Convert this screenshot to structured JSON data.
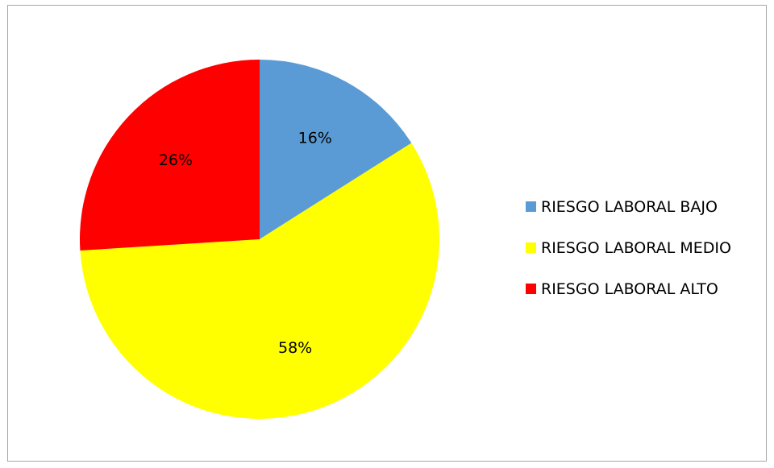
{
  "chart_data": {
    "type": "pie",
    "title": "",
    "series": [
      {
        "name": "RIESGO LABORAL BAJO",
        "value": 16,
        "label": "16%",
        "color": "#5b9bd5"
      },
      {
        "name": "RIESGO LABORAL MEDIO",
        "value": 58,
        "label": "58%",
        "color": "#ffff00"
      },
      {
        "name": "RIESGO LABORAL ALTO",
        "value": 26,
        "label": "26%",
        "color": "#ff0000"
      }
    ],
    "start_angle_deg": 0,
    "direction": "clockwise",
    "legend_position": "right",
    "show_data_labels": true
  }
}
